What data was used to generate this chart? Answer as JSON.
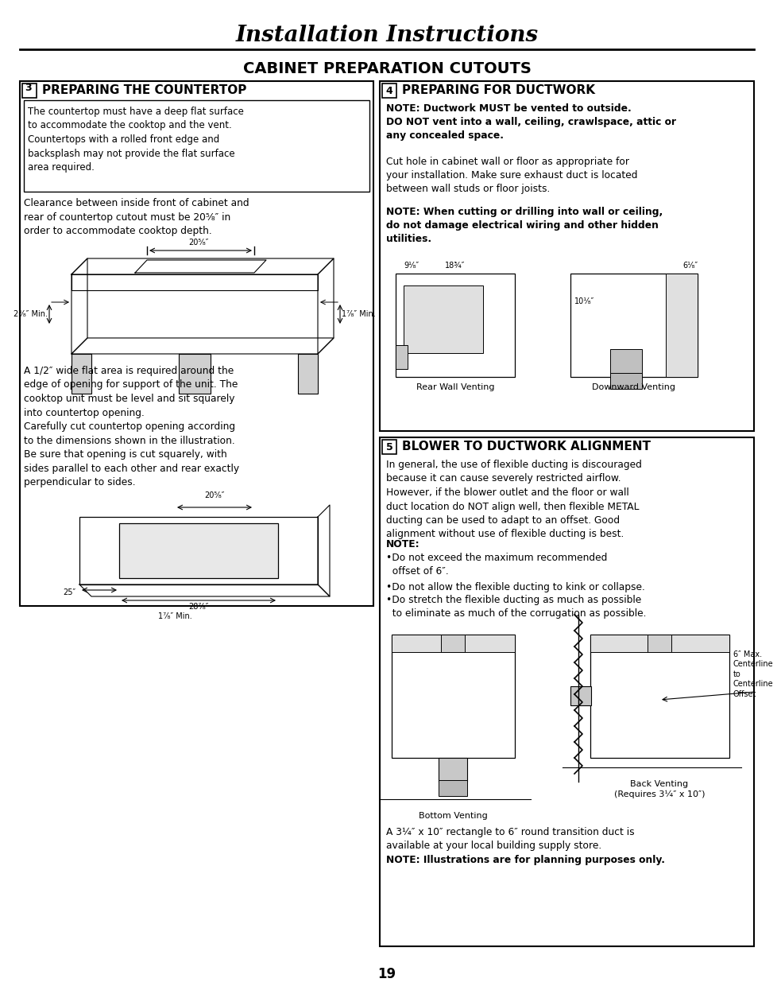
{
  "title": "Installation Instructions",
  "subtitle": "CABINET PREPARATION CUTOUTS",
  "page_number": "19",
  "bg_color": "#ffffff",
  "text_color": "#000000",
  "left_text_box": "The countertop must have a deep flat surface\nto accommodate the cooktop and the vent.\nCountertops with a rolled front edge and\nbacksplash may not provide the flat surface\narea required.",
  "left_para1": "Clearance between inside front of cabinet and\nrear of countertop cutout must be 20⁵⁄₈″ in\norder to accommodate cooktop depth.",
  "left_para2": "A 1/2″ wide flat area is required around the\nedge of opening for support of the unit. The\ncooktop unit must be level and sit squarely\ninto countertop opening.",
  "left_para3": "Carefully cut countertop opening according\nto the dimensions shown in the illustration.\nBe sure that opening is cut squarely, with\nsides parallel to each other and rear exactly\nperpendicular to sides.",
  "right_note1_bold": "NOTE: Ductwork MUST be vented to outside.\nDO NOT vent into a wall, ceiling, crawlspace, attic or\nany concealed space.",
  "right_para1": "Cut hole in cabinet wall or floor as appropriate for\nyour installation. Make sure exhaust duct is located\nbetween wall studs or floor joists.",
  "right_note2_bold": "NOTE: When cutting or drilling into wall or ceiling,\ndo not damage electrical wiring and other hidden\nutilities.",
  "right_label_rear_wall": "Rear Wall Venting",
  "right_label_downward": "Downward Venting",
  "right_dim1": "9¹⁄₈″",
  "right_dim2": "18¾″",
  "right_dim3": "6¹⁄₈″",
  "right_dim4": "10¹⁄₈″",
  "blower_para1": "In general, the use of flexible ducting is discouraged\nbecause it can cause severely restricted airflow.\nHowever, if the blower outlet and the floor or wall\nduct location do NOT align well, then flexible METAL\nducting can be used to adapt to an offset. Good\nalignment without use of flexible ducting is best.",
  "blower_note": "NOTE:",
  "blower_bullet1": "•Do not exceed the maximum recommended\n  offset of 6″.",
  "blower_bullet2": "•Do not allow the flexible ducting to kink or collapse.",
  "blower_bullet3": "•Do stretch the flexible ducting as much as possible\n  to eliminate as much of the corrugation as possible.",
  "blower_label_bottom": "Bottom Venting",
  "blower_label_back": "Back Venting\n(Requires 3¼″ x 10″)",
  "blower_dim_label": "6″ Max.\nCenterline\nto\nCenterline\nOffset",
  "final_para": "A 3¼″ x 10″ rectangle to 6″ round transition duct is\navailable at your local building supply store.",
  "final_note": "NOTE: Illustrations are for planning purposes only.",
  "left_dim1": "20⁵⁄₈″",
  "left_dim2": "2³⁄₈″ Min.",
  "left_dim3": "1⁷⁄₈″ Min.",
  "left_dim4": "20⁵⁄₈″",
  "left_dim5": "25″",
  "left_dim6": "28⁷⁄₈″",
  "left_dim7": "1⁷⁄₈″ Min."
}
